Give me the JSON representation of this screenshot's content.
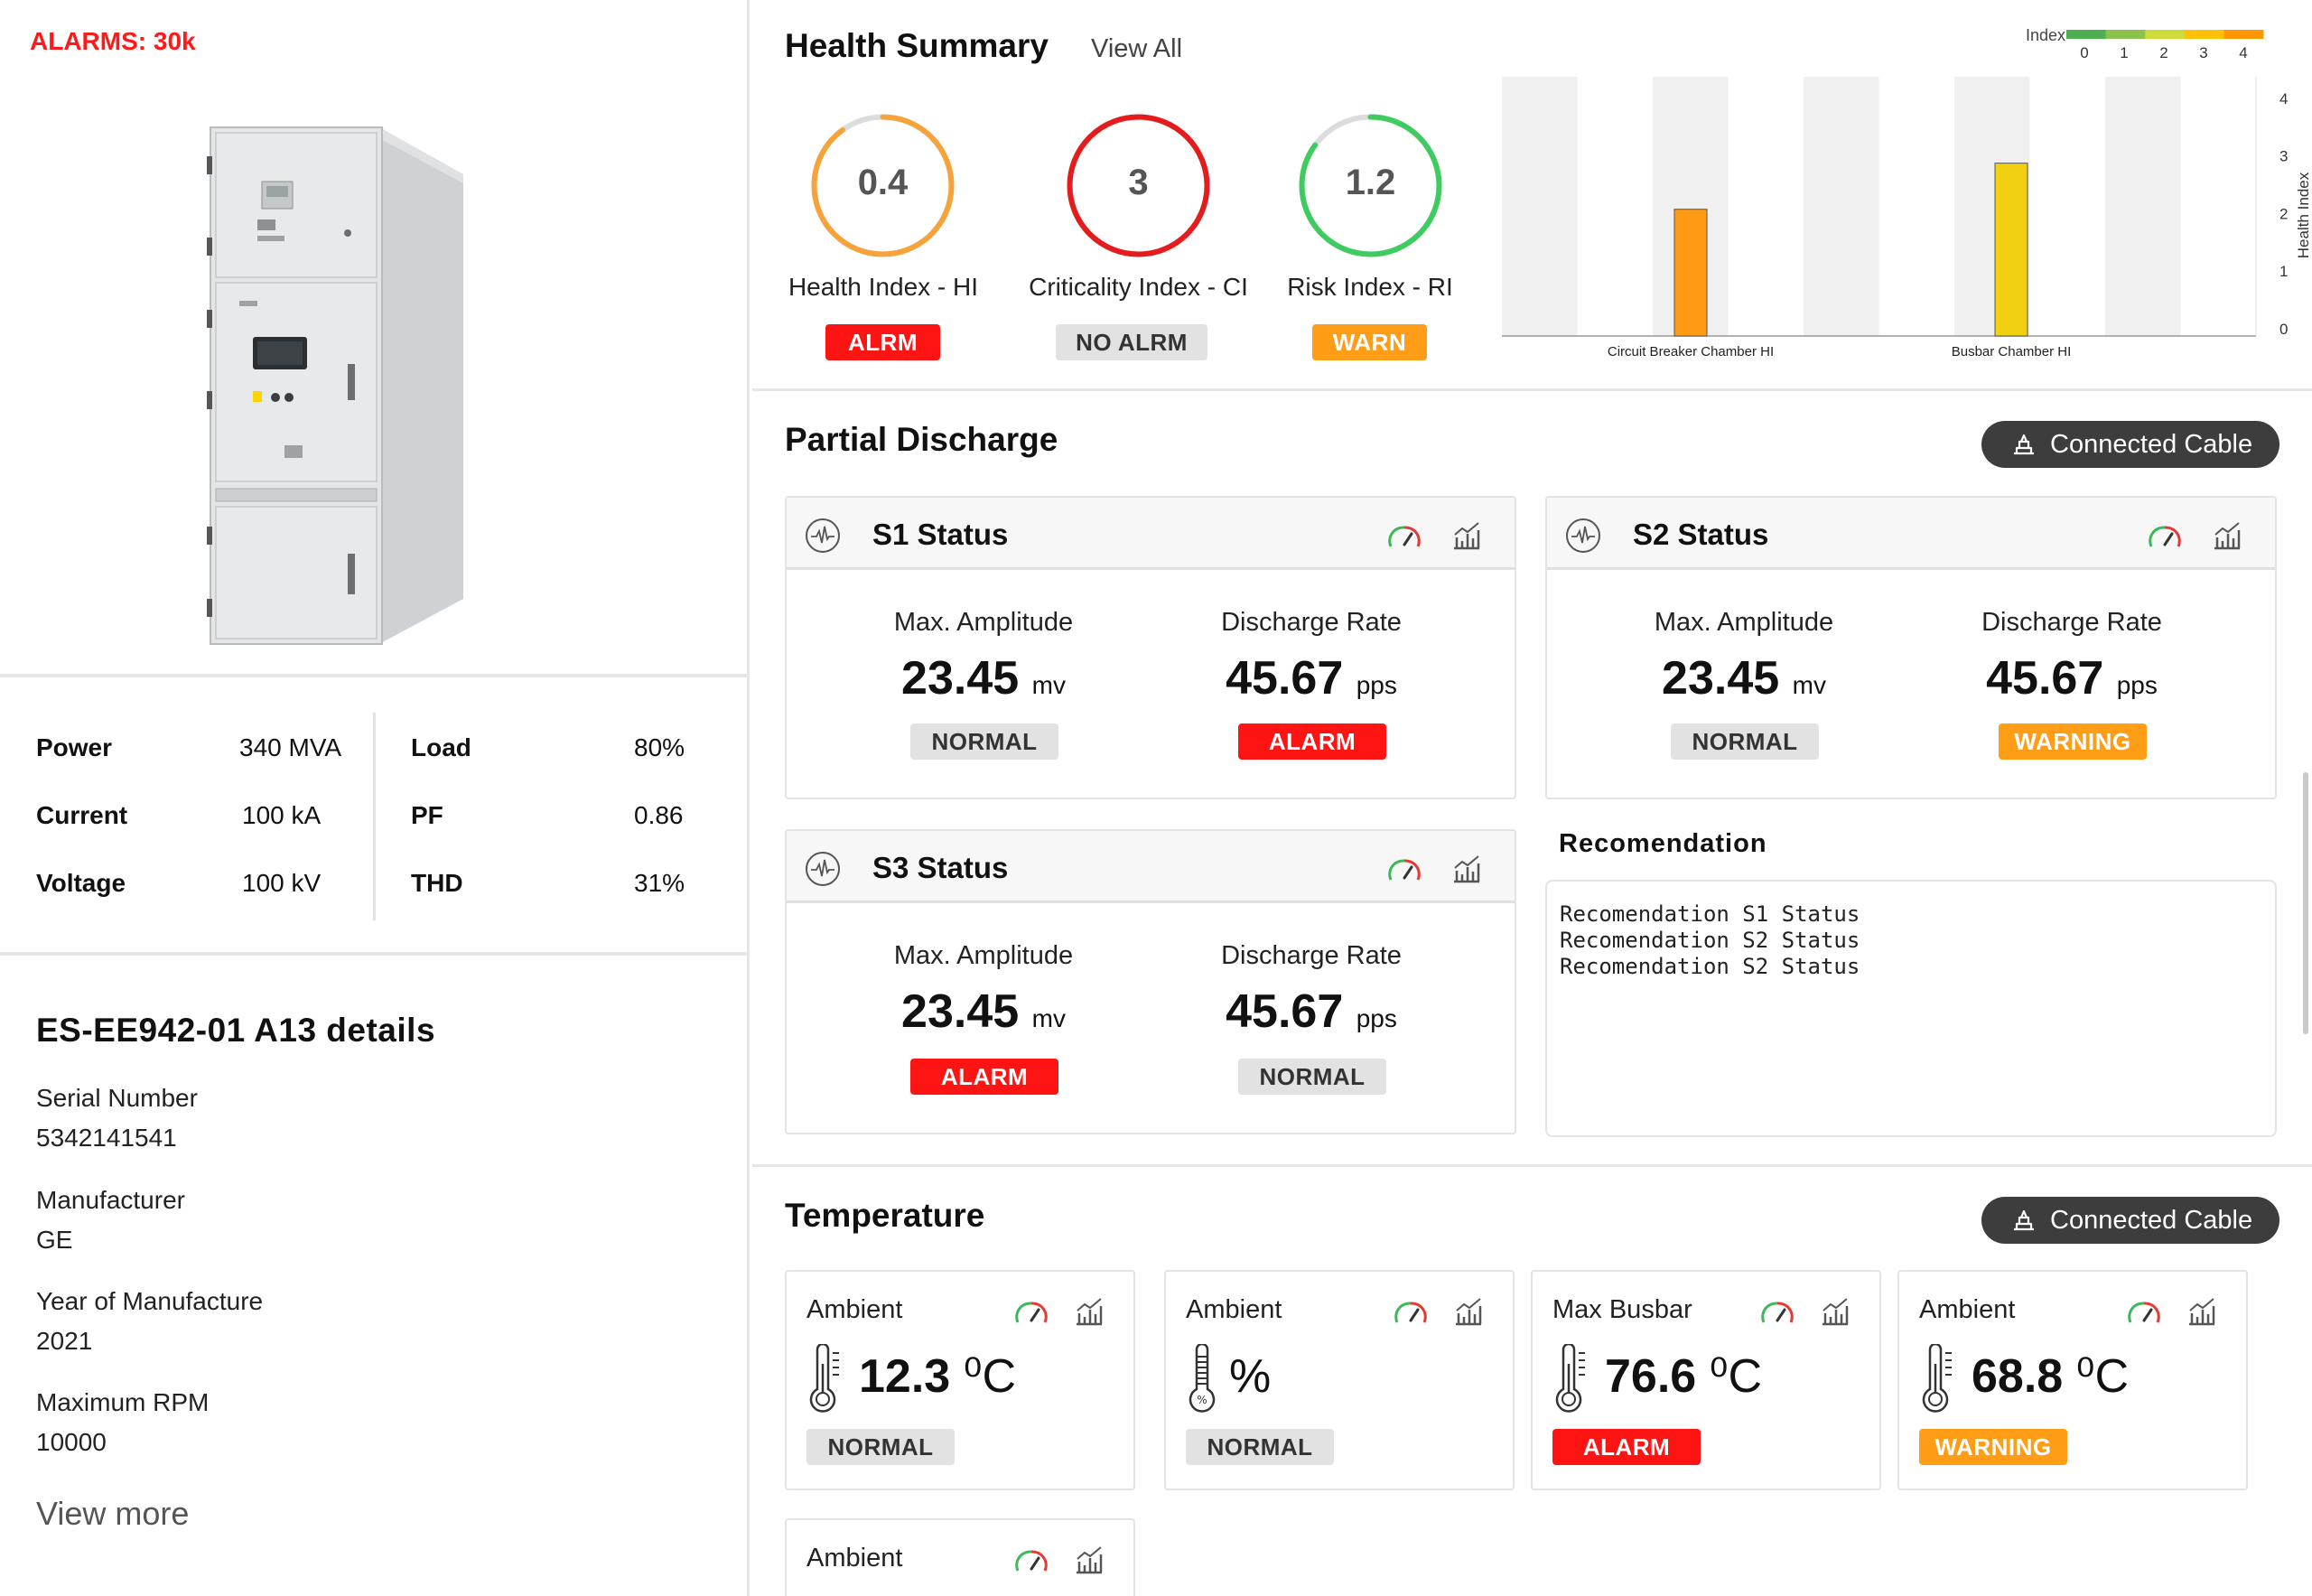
{
  "left": {
    "alarms": "ALARMS: 30k",
    "specs": [
      {
        "label": "Power",
        "value": "340 MVA"
      },
      {
        "label": "Current",
        "value": "100 kA"
      },
      {
        "label": "Voltage",
        "value": "100 kV"
      },
      {
        "label": "Load",
        "value": "80%"
      },
      {
        "label": "PF",
        "value": "0.86"
      },
      {
        "label": "THD",
        "value": "31%"
      }
    ],
    "details_title": "ES-EE942-01 A13 details",
    "details": [
      {
        "label": "Serial Number",
        "value": "5342141541"
      },
      {
        "label": "Manufacturer",
        "value": "GE"
      },
      {
        "label": "Year of Manufacture",
        "value": "2021"
      },
      {
        "label": "Maximum RPM",
        "value": "10000"
      }
    ],
    "view_more": "View more"
  },
  "health": {
    "title": "Health Summary",
    "view_all": "View All",
    "gauges": [
      {
        "value": "0.4",
        "label": "Health Index - HI",
        "status": "ALRM",
        "ring_color": "#f7a33b",
        "fill": 0.9
      },
      {
        "value": "3",
        "label": "Criticality Index - CI",
        "status": "NO ALRM",
        "ring_color": "#e51c1c",
        "fill": 1.0
      },
      {
        "value": "1.2",
        "label": "Risk Index - RI",
        "status": "WARN",
        "ring_color": "#3ecc61",
        "fill": 0.85
      }
    ]
  },
  "chart_data": {
    "type": "bar",
    "categories": [
      "Circuit Breaker Chamber HI",
      "Busbar Chamber HI"
    ],
    "values": [
      2.2,
      3.0
    ],
    "colors": [
      "#ff9a14",
      "#f0d010"
    ],
    "ylabel": "Health Index",
    "ylim": [
      0,
      4.5
    ],
    "yticks": [
      "0",
      "1",
      "2",
      "3",
      "4"
    ],
    "legend_title": "Index",
    "legend_ticks": [
      "0",
      "1",
      "2",
      "3",
      "4"
    ],
    "legend_colors": [
      "#4caf50",
      "#8bc34a",
      "#cddc39",
      "#ffc107",
      "#ff9800"
    ],
    "grid": false
  },
  "pd": {
    "title": "Partial Discharge",
    "connected_cable": "Connected Cable",
    "cards": [
      {
        "title": "S1 Status",
        "amp_label": "Max. Amplitude",
        "amp_value": "23.45",
        "amp_unit": "mv",
        "amp_status": "NORMAL",
        "rate_label": "Discharge Rate",
        "rate_value": "45.67",
        "rate_unit": "pps",
        "rate_status": "ALARM"
      },
      {
        "title": "S2 Status",
        "amp_label": "Max. Amplitude",
        "amp_value": "23.45",
        "amp_unit": "mv",
        "amp_status": "NORMAL",
        "rate_label": "Discharge Rate",
        "rate_value": "45.67",
        "rate_unit": "pps",
        "rate_status": "WARNING"
      },
      {
        "title": "S3 Status",
        "amp_label": "Max. Amplitude",
        "amp_value": "23.45",
        "amp_unit": "mv",
        "amp_status": "ALARM",
        "rate_label": "Discharge Rate",
        "rate_value": "45.67",
        "rate_unit": "pps",
        "rate_status": "NORMAL"
      }
    ],
    "recommendation_title": "Recomendation",
    "recommendations": [
      "Recomendation S1 Status",
      "Recomendation S2 Status",
      "Recomendation S2 Status"
    ]
  },
  "temperature": {
    "title": "Temperature",
    "connected_cable": "Connected Cable",
    "cards": [
      {
        "label": "Ambient",
        "value": "12.3",
        "unit": "⁰C",
        "status": "NORMAL"
      },
      {
        "label": "Ambient",
        "value": "",
        "unit": "%",
        "status": "NORMAL"
      },
      {
        "label": "Max Busbar",
        "value": "76.6",
        "unit": "⁰C",
        "status": "ALARM"
      },
      {
        "label": "Ambient",
        "value": "68.8",
        "unit": "⁰C",
        "status": "WARNING"
      },
      {
        "label": "Ambient",
        "value": "",
        "unit": "",
        "status": ""
      }
    ]
  }
}
